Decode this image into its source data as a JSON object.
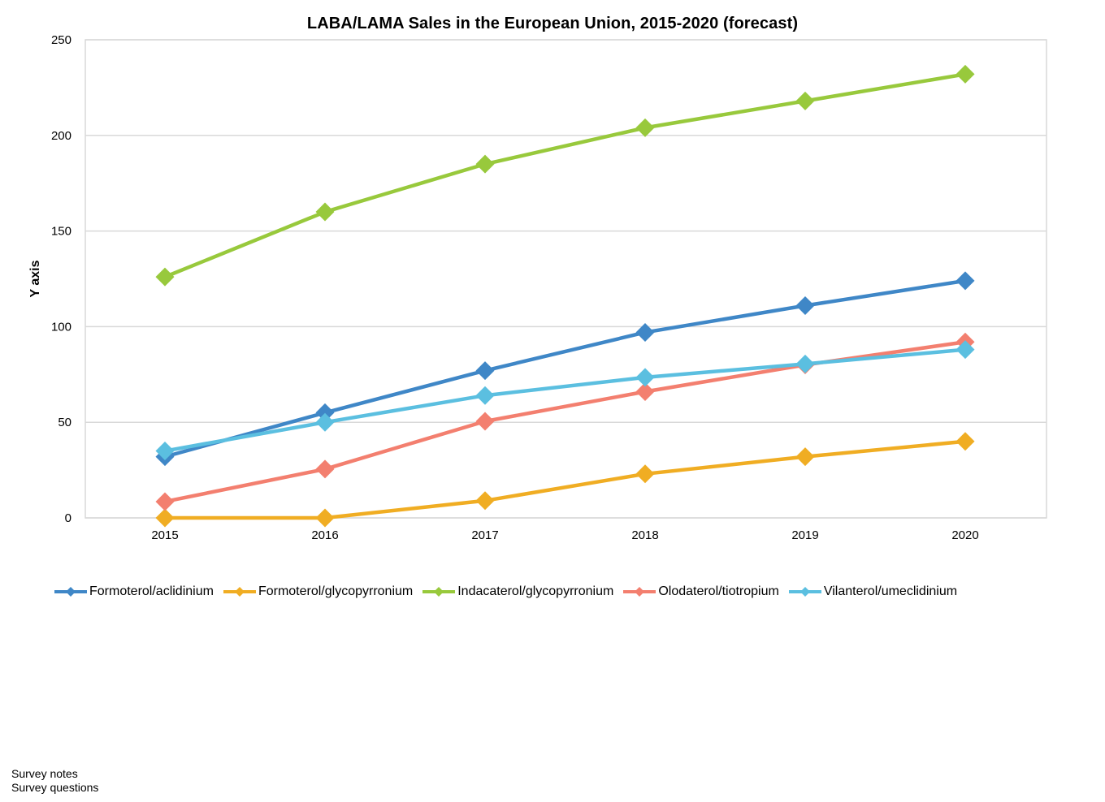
{
  "chart_data": {
    "type": "line",
    "title": "LABA/LAMA Sales in the European Union, 2015-2020  (forecast)",
    "xlabel": "",
    "ylabel": "Y axis",
    "ylim": [
      0,
      250
    ],
    "yticks": [
      0,
      50,
      100,
      150,
      200,
      250
    ],
    "grid": true,
    "legend_position": "bottom",
    "categories": [
      "2015",
      "2016",
      "2017",
      "2018",
      "2019",
      "2020"
    ],
    "series": [
      {
        "name": "Formoterol/aclidinium",
        "color": "#3f87c7",
        "marker": "diamond",
        "values": [
          32,
          55,
          77,
          97,
          111,
          124
        ]
      },
      {
        "name": "Formoterol/glycopyrronium",
        "color": "#f0ad23",
        "marker": "diamond",
        "values": [
          0,
          0,
          9,
          23,
          32,
          40
        ]
      },
      {
        "name": "Indacaterol/glycopyrronium",
        "color": "#98c93c",
        "marker": "diamond",
        "values": [
          126,
          160,
          185,
          204,
          218,
          232
        ]
      },
      {
        "name": "Olodaterol/tiotropium",
        "color": "#f37f6f",
        "marker": "diamond",
        "values": [
          8.5,
          25.5,
          50.5,
          66,
          80,
          92
        ]
      },
      {
        "name": "Vilanterol/umeclidinium",
        "color": "#5bbfe0",
        "marker": "diamond",
        "values": [
          35,
          50,
          64,
          73.5,
          80.5,
          88
        ]
      }
    ]
  },
  "footnotes": [
    "Survey notes",
    "Survey questions"
  ]
}
